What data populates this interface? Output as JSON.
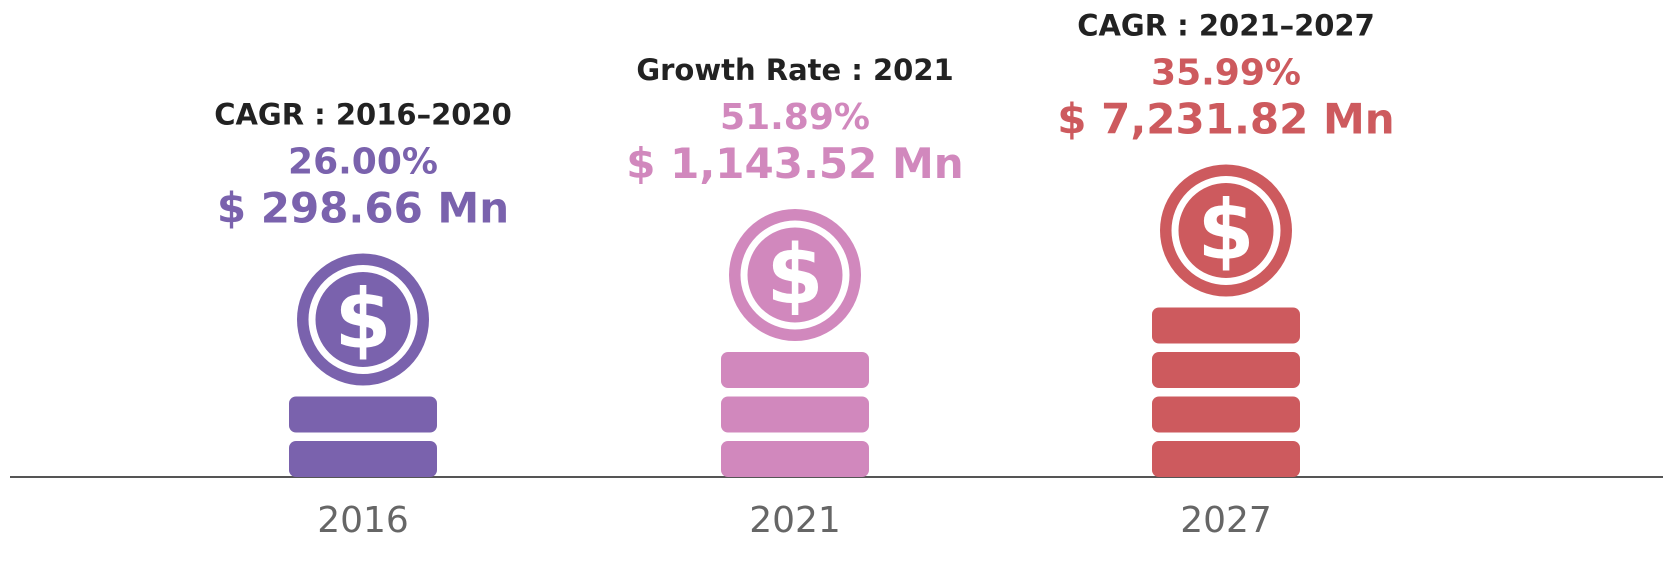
{
  "items": [
    {
      "label": "CAGR : 2016–2020",
      "rate": "26.00%",
      "value": "$ 298.66 Mn",
      "year": "2016",
      "color": "#7a62ad"
    },
    {
      "label": "Growth Rate : 2021",
      "rate": "51.89%",
      "value": "$ 1,143.52 Mn",
      "year": "2021",
      "color": "#d188bd"
    },
    {
      "label": "CAGR : 2021–2027",
      "rate": "35.99%",
      "value": "$ 7,231.82 Mn",
      "year": "2027",
      "color": "#cd5a5e"
    }
  ]
}
